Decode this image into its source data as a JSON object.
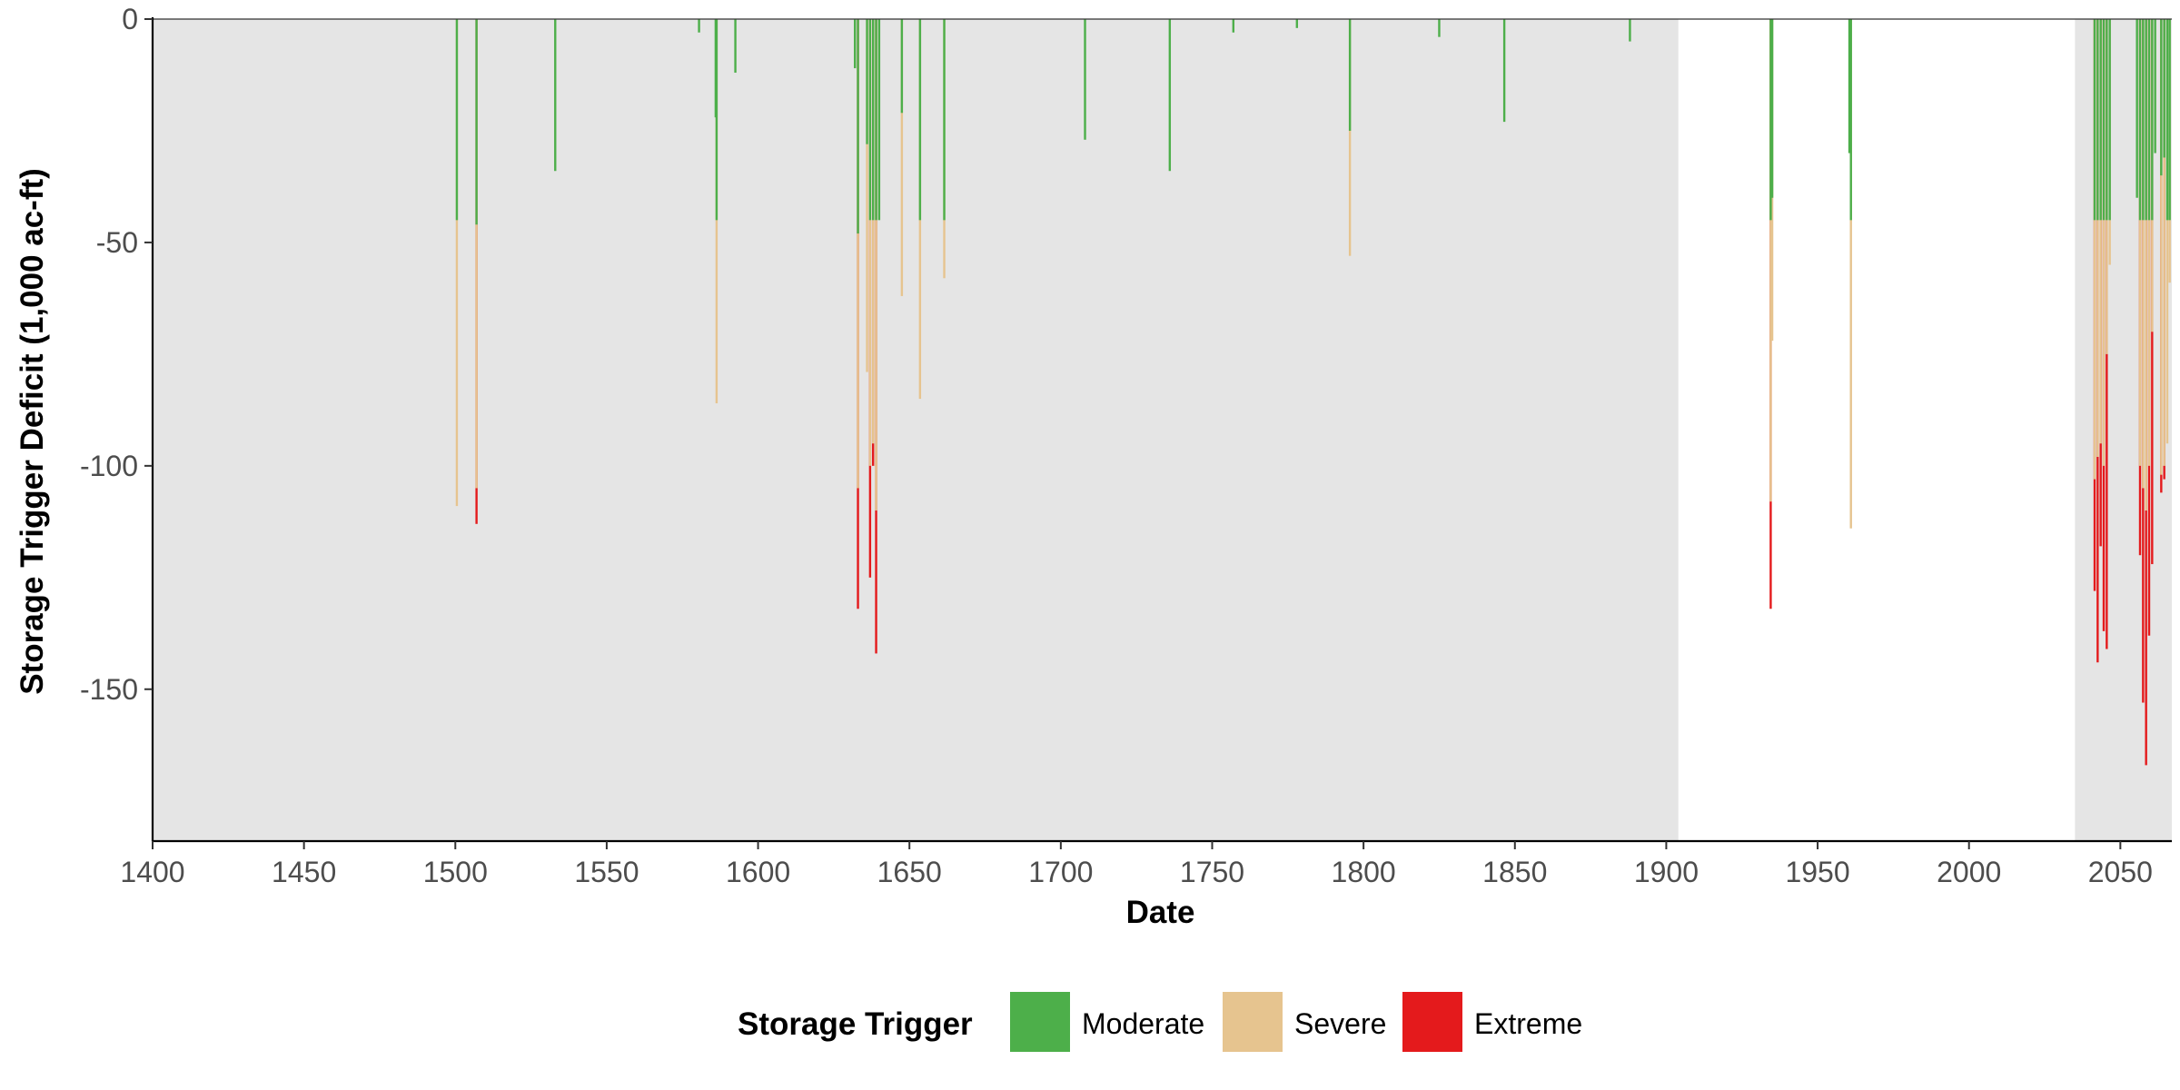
{
  "chart_data": {
    "type": "bar",
    "xlabel": "Date",
    "ylabel": "Storage Trigger Deficit (1,000 ac-ft)",
    "xlim": [
      1400,
      2067
    ],
    "ylim": [
      -184,
      0
    ],
    "x_ticks": [
      1400,
      1450,
      1500,
      1550,
      1600,
      1650,
      1700,
      1750,
      1800,
      1850,
      1900,
      1950,
      2000,
      2050
    ],
    "x_tick_labels": [
      "1400",
      "1450",
      "1500",
      "1550",
      "1600",
      "1650",
      "1700",
      "1750",
      "1800",
      "1850",
      "1900",
      "1950",
      "2000",
      "2050"
    ],
    "y_ticks": [
      0,
      -50,
      -100,
      -150
    ],
    "y_tick_labels": [
      "0",
      "-50",
      "-100",
      "-150"
    ],
    "grid": false,
    "shaded_periods": [
      [
        1400,
        1904
      ],
      [
        2035,
        2067
      ]
    ],
    "shade_color": "#e5e5e5",
    "legend": {
      "title": "Storage Trigger",
      "position": "bottom",
      "entries": [
        "Moderate",
        "Severe",
        "Extreme"
      ]
    },
    "series": [
      {
        "name": "Moderate",
        "color": "#4daf4a",
        "points": [
          [
            1500.5,
            -45
          ],
          [
            1507,
            -46
          ],
          [
            1533,
            -34
          ],
          [
            1580.5,
            -3
          ],
          [
            1586,
            -22
          ],
          [
            1586.3,
            -45
          ],
          [
            1592.5,
            -12
          ],
          [
            1632,
            -11
          ],
          [
            1633,
            -48
          ],
          [
            1636,
            -28
          ],
          [
            1637,
            -45
          ],
          [
            1638,
            -45
          ],
          [
            1639,
            -45
          ],
          [
            1640,
            -45
          ],
          [
            1647.5,
            -21
          ],
          [
            1653.5,
            -45
          ],
          [
            1661.5,
            -45
          ],
          [
            1708,
            -27
          ],
          [
            1736,
            -34
          ],
          [
            1757,
            -3
          ],
          [
            1778,
            -2
          ],
          [
            1795.5,
            -25
          ],
          [
            1825,
            -4
          ],
          [
            1846.5,
            -23
          ],
          [
            1888,
            -5
          ],
          [
            1934.5,
            -45
          ],
          [
            1935,
            -40
          ],
          [
            1960.5,
            -30
          ],
          [
            1961,
            -45
          ],
          [
            2041.5,
            -45
          ],
          [
            2042.5,
            -45
          ],
          [
            2043.5,
            -45
          ],
          [
            2044.5,
            -45
          ],
          [
            2045.5,
            -45
          ],
          [
            2046.5,
            -45
          ],
          [
            2055.5,
            -40
          ],
          [
            2056.5,
            -45
          ],
          [
            2057.5,
            -45
          ],
          [
            2058.5,
            -45
          ],
          [
            2059.5,
            -45
          ],
          [
            2060.5,
            -45
          ],
          [
            2061.5,
            -30
          ],
          [
            2063.5,
            -35
          ],
          [
            2064.5,
            -31
          ],
          [
            2065.5,
            -45
          ],
          [
            2066.3,
            -45
          ]
        ]
      },
      {
        "name": "Severe",
        "color": "#e6c48f",
        "points": [
          [
            1500.5,
            -109
          ],
          [
            1507,
            -105
          ],
          [
            1586.3,
            -86
          ],
          [
            1633,
            -105
          ],
          [
            1636,
            -79
          ],
          [
            1637,
            -100
          ],
          [
            1638,
            -95
          ],
          [
            1639,
            -110
          ],
          [
            1647.5,
            -62
          ],
          [
            1653.5,
            -85
          ],
          [
            1661.5,
            -58
          ],
          [
            1795.5,
            -53
          ],
          [
            1934.5,
            -108
          ],
          [
            1935,
            -72
          ],
          [
            1961,
            -114
          ],
          [
            2041.5,
            -103
          ],
          [
            2042.5,
            -98
          ],
          [
            2043.5,
            -95
          ],
          [
            2044.5,
            -100
          ],
          [
            2045.5,
            -75
          ],
          [
            2046.5,
            -55
          ],
          [
            2056.5,
            -100
          ],
          [
            2057.5,
            -105
          ],
          [
            2058.5,
            -110
          ],
          [
            2059.5,
            -100
          ],
          [
            2060.5,
            -70
          ],
          [
            2063.5,
            -102
          ],
          [
            2064.5,
            -100
          ],
          [
            2065.5,
            -95
          ],
          [
            2066.3,
            -59
          ]
        ]
      },
      {
        "name": "Extreme",
        "color": "#e41a1c",
        "points": [
          [
            1507,
            -113
          ],
          [
            1633,
            -132
          ],
          [
            1637,
            -125
          ],
          [
            1638,
            -100
          ],
          [
            1639,
            -142
          ],
          [
            1934.5,
            -132
          ],
          [
            2041.5,
            -128
          ],
          [
            2042.5,
            -144
          ],
          [
            2043.5,
            -118
          ],
          [
            2044.5,
            -137
          ],
          [
            2045.5,
            -141
          ],
          [
            2056.5,
            -120
          ],
          [
            2057.5,
            -153
          ],
          [
            2058.5,
            -167
          ],
          [
            2059.5,
            -138
          ],
          [
            2060.5,
            -122
          ],
          [
            2063.5,
            -106
          ],
          [
            2064.5,
            -103
          ]
        ]
      }
    ]
  }
}
